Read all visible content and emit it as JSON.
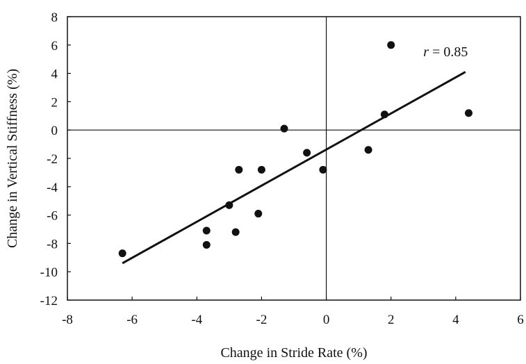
{
  "chart_data": {
    "type": "scatter",
    "xlabel": "Change in Stride Rate (%)",
    "ylabel": "Change in Vertical Stiffness (%)",
    "xlim": [
      -8,
      6
    ],
    "ylim": [
      -12,
      8
    ],
    "x_ticks": [
      "-8",
      "-6",
      "-4",
      "-2",
      "0",
      "2",
      "4",
      "6"
    ],
    "y_ticks": [
      "8",
      "6",
      "4",
      "2",
      "0",
      "-2",
      "-4",
      "-6",
      "-8",
      "-10",
      "-12"
    ],
    "grid": false,
    "zero_lines": true,
    "series": [
      {
        "points": [
          {
            "x": -6.3,
            "y": -8.7
          },
          {
            "x": -3.7,
            "y": -7.1
          },
          {
            "x": -3.7,
            "y": -8.1
          },
          {
            "x": -3.0,
            "y": -5.3
          },
          {
            "x": -2.8,
            "y": -7.2
          },
          {
            "x": -2.7,
            "y": -2.8
          },
          {
            "x": -2.1,
            "y": -5.9
          },
          {
            "x": -2.0,
            "y": -2.8
          },
          {
            "x": -1.3,
            "y": 0.1
          },
          {
            "x": -0.6,
            "y": -1.6
          },
          {
            "x": -0.1,
            "y": -2.8
          },
          {
            "x": 1.3,
            "y": -1.4
          },
          {
            "x": 1.8,
            "y": 1.1
          },
          {
            "x": 2.0,
            "y": 6.0
          },
          {
            "x": 4.4,
            "y": 1.2
          }
        ]
      }
    ],
    "trend_line": {
      "x1": -6.3,
      "y1": -9.4,
      "x2": 4.3,
      "y2": 4.1
    },
    "annotation": {
      "symbol": "r",
      "text": " = 0.85"
    }
  }
}
